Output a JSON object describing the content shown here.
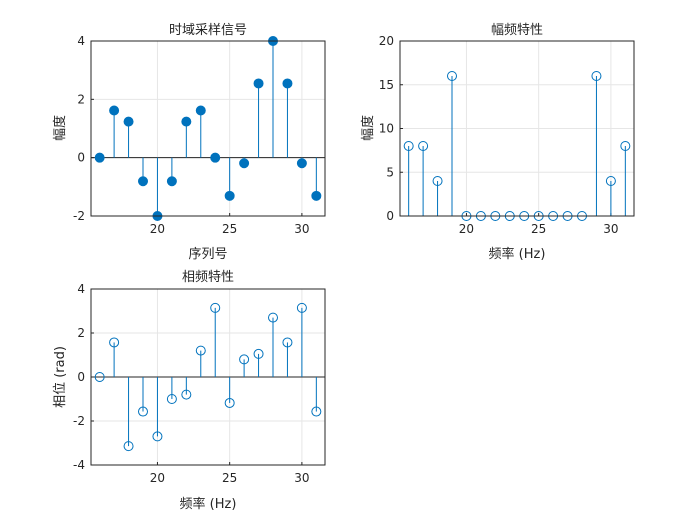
{
  "chart_data": [
    {
      "type": "stem",
      "title": "时域采样信号",
      "xlabel": "序列号",
      "ylabel": "幅度",
      "xlim": [
        15.4,
        31.6
      ],
      "ylim": [
        -2,
        4
      ],
      "xticks": [
        20,
        25,
        30
      ],
      "yticks": [
        -2,
        0,
        2,
        4
      ],
      "marker": "filled",
      "grid": true,
      "x": [
        16,
        17,
        18,
        19,
        20,
        21,
        22,
        23,
        24,
        25,
        26,
        27,
        28,
        29,
        30,
        31
      ],
      "y": [
        0,
        1.618,
        1.236,
        -0.809,
        -2,
        -0.809,
        1.236,
        1.618,
        0,
        -1.309,
        -0.191,
        2.545,
        4,
        2.545,
        -0.191,
        -1.309
      ],
      "color": "#0072bd"
    },
    {
      "type": "stem",
      "title": "幅频特性",
      "xlabel": "频率 (Hz)",
      "ylabel": "幅度",
      "xlim": [
        15.4,
        31.6
      ],
      "ylim": [
        0,
        20
      ],
      "xticks": [
        20,
        25,
        30
      ],
      "yticks": [
        0,
        5,
        10,
        15,
        20
      ],
      "marker": "open",
      "grid": true,
      "x": [
        16,
        17,
        18,
        19,
        20,
        21,
        22,
        23,
        24,
        25,
        26,
        27,
        28,
        29,
        30,
        31
      ],
      "y": [
        8,
        8,
        4,
        16,
        0,
        0,
        0,
        0,
        0,
        0,
        0,
        0,
        0,
        16,
        4,
        8
      ],
      "color": "#0072bd"
    },
    {
      "type": "stem",
      "title": "相频特性",
      "xlabel": "频率 (Hz)",
      "ylabel": "相位 (rad)",
      "xlim": [
        15.4,
        31.6
      ],
      "ylim": [
        -4,
        4
      ],
      "xticks": [
        20,
        25,
        30
      ],
      "yticks": [
        -4,
        -2,
        0,
        2,
        4
      ],
      "marker": "open",
      "grid": true,
      "x": [
        16,
        17,
        18,
        19,
        20,
        21,
        22,
        23,
        24,
        25,
        26,
        27,
        28,
        29,
        30,
        31
      ],
      "y": [
        0,
        1.571,
        -3.142,
        -1.571,
        -2.7,
        -1.0,
        -0.8,
        1.2,
        3.142,
        -1.18,
        0.8,
        1.05,
        2.7,
        1.571,
        3.142,
        -1.571
      ],
      "color": "#0072bd"
    }
  ]
}
